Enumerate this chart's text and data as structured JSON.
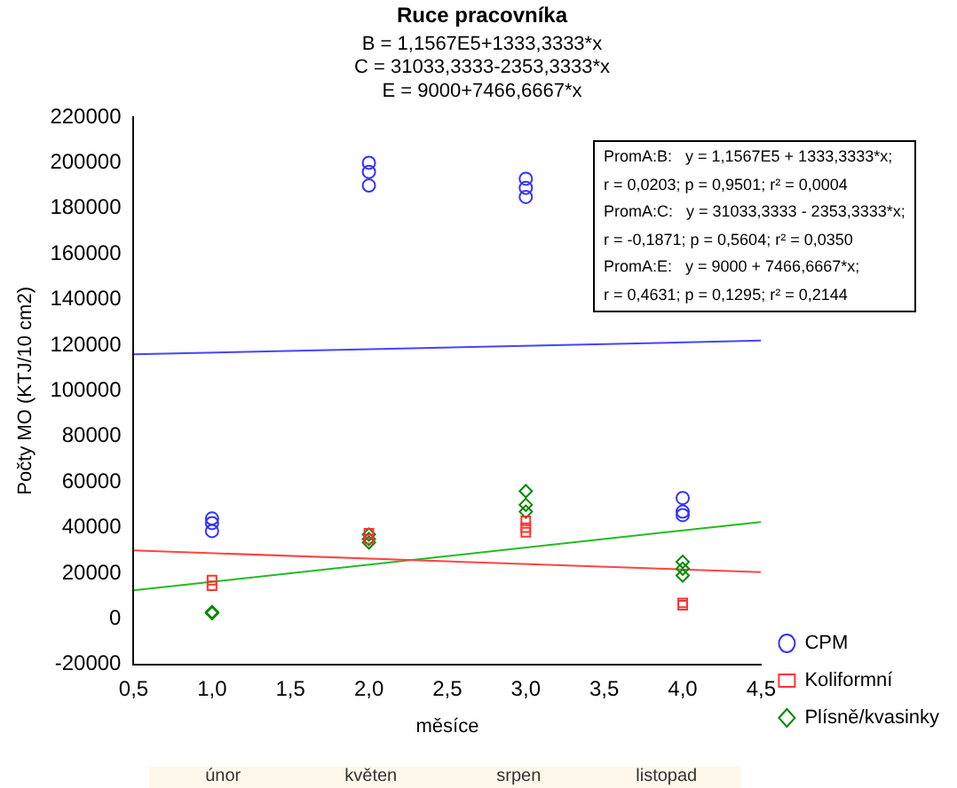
{
  "chart_data": {
    "type": "scatter",
    "title": "Ruce pracovníka",
    "subtitle": "B = 1,1567E5+1333,3333*x\nC = 31033,3333-2353,3333*x\nE = 9000+7466,6667*x",
    "xlabel": "měsíce",
    "ylabel": "Počty MO (KTJ/10 cm2)",
    "xlim": [
      0.5,
      4.5
    ],
    "xticks": [
      {
        "value": 0.5,
        "label": "0,5"
      },
      {
        "value": 1,
        "label": "1,0"
      },
      {
        "value": 1.5,
        "label": "1,5"
      },
      {
        "value": 2,
        "label": "2,0"
      },
      {
        "value": 2.5,
        "label": "2,5"
      },
      {
        "value": 3,
        "label": "3,0"
      },
      {
        "value": 3.5,
        "label": "3,5"
      },
      {
        "value": 4,
        "label": "4,0"
      },
      {
        "value": 4.5,
        "label": "4,5"
      }
    ],
    "ylim": [
      -20000,
      220000
    ],
    "yticks": [
      -20000,
      0,
      20000,
      40000,
      60000,
      80000,
      100000,
      120000,
      140000,
      160000,
      180000,
      200000,
      220000
    ],
    "grid": false,
    "legend": "bottom right",
    "annotations": [
      "PromA:B:   y = 1,1567E5 + 1333,3333*x;\nr = 0,0203; p = 0,9501; r² = 0,0004\nPromA:C:   y = 31033,3333 - 2353,3333*x;\nr = -0,1871; p = 0,5604; r² = 0,0350\nPromA:E:   y = 9000 + 7466,6667*x;\nr = 0,4631; p = 0,1295; r² = 0,2144",
      "únor",
      "květen",
      "srpen",
      "listopad"
    ],
    "series": [
      {
        "name": "CPM",
        "marker": "circle",
        "color": "#3333ff",
        "x": [
          1,
          1,
          1,
          2,
          2,
          2,
          3,
          3,
          3,
          4,
          4,
          4
        ],
        "values": [
          44000,
          42000,
          38500,
          200000,
          196000,
          190000,
          193000,
          189000,
          185000,
          53000,
          47000,
          45500
        ]
      },
      {
        "name": "Koliformní",
        "marker": "square",
        "color": "#ff3333",
        "x": [
          1,
          1,
          2,
          2,
          3,
          3,
          3,
          4,
          4
        ],
        "values": [
          17000,
          14500,
          37500,
          35000,
          43000,
          40000,
          38000,
          7000,
          6000
        ]
      },
      {
        "name": "Plísně/kvasinky",
        "marker": "diamond",
        "color": "#008800",
        "x": [
          1,
          1,
          2,
          2,
          2,
          3,
          3,
          3,
          4,
          4,
          4
        ],
        "values": [
          2500,
          3000,
          37000,
          35000,
          33500,
          56000,
          50000,
          47000,
          25000,
          22000,
          19000
        ]
      },
      {
        "type": "line",
        "marker": "none",
        "color": "#4444ff",
        "x": [
          0.5,
          4.5
        ],
        "values": [
          116000,
          122000
        ]
      },
      {
        "type": "line",
        "marker": "none",
        "color": "#ff4444",
        "x": [
          0.5,
          4.5
        ],
        "values": [
          30000,
          20500
        ]
      },
      {
        "type": "line",
        "marker": "none",
        "color": "#22bb22",
        "x": [
          0.5,
          4.5
        ],
        "values": [
          12500,
          42500
        ]
      }
    ]
  }
}
